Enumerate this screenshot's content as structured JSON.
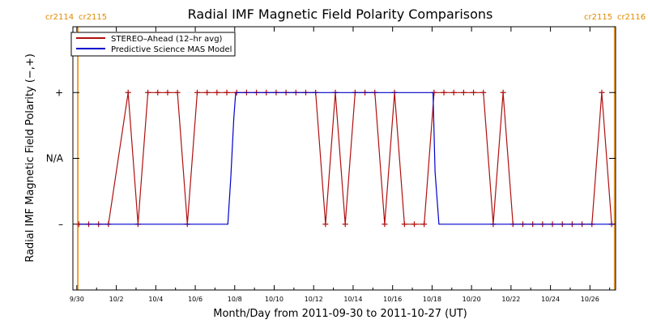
{
  "chart_data": {
    "type": "line",
    "title": "Radial IMF Magnetic Field Polarity Comparisons",
    "xlabel": "Month/Day from 2011-09-30 to 2011-10-27 (UT)",
    "ylabel": "Radial IMF Magnetic Field Polarity (−,+)",
    "xlim": [
      -0.2,
      27.3
    ],
    "ylim": [
      -2,
      2
    ],
    "y_ticks": [
      {
        "value": 1,
        "label": "+"
      },
      {
        "value": 0,
        "label": "N/A"
      },
      {
        "value": -1,
        "label": "–"
      }
    ],
    "x_ticks": [
      {
        "value": 0,
        "label": "9/30"
      },
      {
        "value": 2,
        "label": "10/2"
      },
      {
        "value": 4,
        "label": "10/4"
      },
      {
        "value": 6,
        "label": "10/6"
      },
      {
        "value": 8,
        "label": "10/8"
      },
      {
        "value": 10,
        "label": "10/10"
      },
      {
        "value": 12,
        "label": "10/12"
      },
      {
        "value": 14,
        "label": "10/14"
      },
      {
        "value": 16,
        "label": "10/16"
      },
      {
        "value": 18,
        "label": "10/18"
      },
      {
        "value": 20,
        "label": "10/20"
      },
      {
        "value": 22,
        "label": "10/22"
      },
      {
        "value": 24,
        "label": "10/24"
      },
      {
        "value": 26,
        "label": "10/26"
      }
    ],
    "carrington": [
      {
        "x": 0.05,
        "left": "cr2114",
        "right": "cr2115",
        "side": "left"
      },
      {
        "x": 27.25,
        "left": "cr2115",
        "right": "cr2116",
        "side": "right"
      }
    ],
    "legend_position": "top-left",
    "series": [
      {
        "name": "STEREO–Ahead (12–hr avg)",
        "color": "#b01010",
        "markers": true,
        "x": [
          0.1,
          0.6,
          1.1,
          1.6,
          2.6,
          3.1,
          3.6,
          4.1,
          4.6,
          5.1,
          5.6,
          6.1,
          6.6,
          7.1,
          7.6,
          8.1,
          8.6,
          9.1,
          9.6,
          10.1,
          10.6,
          11.1,
          11.6,
          12.1,
          12.6,
          13.1,
          13.6,
          14.1,
          14.6,
          15.1,
          15.6,
          16.1,
          16.6,
          17.1,
          17.6,
          18.1,
          18.6,
          19.1,
          19.6,
          20.1,
          20.6,
          21.1,
          21.6,
          22.1,
          22.6,
          23.1,
          23.6,
          24.1,
          24.6,
          25.1,
          25.6,
          26.1,
          26.6,
          27.1
        ],
        "y": [
          -1,
          -1,
          -1,
          -1,
          1,
          -1,
          1,
          1,
          1,
          1,
          -1,
          1,
          1,
          1,
          1,
          1,
          1,
          1,
          1,
          1,
          1,
          1,
          1,
          1,
          -1,
          1,
          -1,
          1,
          1,
          1,
          -1,
          1,
          -1,
          -1,
          -1,
          1,
          1,
          1,
          1,
          1,
          1,
          -1,
          1,
          -1,
          -1,
          -1,
          -1,
          -1,
          -1,
          -1,
          -1,
          -1,
          1,
          -1
        ]
      },
      {
        "name": "Predictive Science MAS Model",
        "color": "#0000cc",
        "markers": false,
        "x": [
          0.1,
          7.65,
          7.8,
          7.95,
          8.05,
          18.05,
          18.15,
          18.35,
          27.25
        ],
        "y": [
          -1,
          -1,
          -0.3,
          0.6,
          1,
          1,
          -0.2,
          -1,
          -1
        ]
      }
    ]
  }
}
